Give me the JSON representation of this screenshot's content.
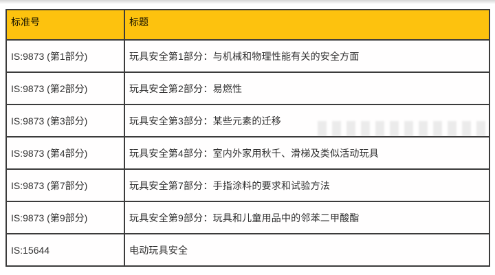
{
  "page": {
    "background": "#ffffff",
    "description": "Standards listing table of Indian toy safety standards with Chinese titles"
  },
  "table": {
    "colors": {
      "header_bg": "#fdc20e",
      "border": "#3b3b3b",
      "body_text": "#2e2e2e",
      "header_text": "#151200"
    },
    "headers": [
      "标准号",
      "标题"
    ],
    "rows": [
      {
        "standard": "IS:9873 (第1部分)",
        "title": "玩具安全第1部分：与机械和物理性能有关的安全方面"
      },
      {
        "standard": "IS:9873 (第2部分)",
        "title": "玩具安全第2部分：易燃性"
      },
      {
        "standard": "IS:9873 (第3部分)",
        "title": "玩具安全第3部分：某些元素的迁移"
      },
      {
        "standard": "IS:9873 (第4部分)",
        "title": "玩具安全第4部分：室内外家用秋千、滑梯及类似活动玩具"
      },
      {
        "standard": "IS:9873 (第7部分)",
        "title": "玩具安全第7部分：手指涂料的要求和试验方法"
      },
      {
        "standard": "IS:9873 (第9部分)",
        "title": "玩具安全第9部分：玩具和儿童用品中的邻苯二甲酸酯"
      },
      {
        "standard": "IS:15644",
        "title": "电动玩具安全"
      }
    ]
  }
}
